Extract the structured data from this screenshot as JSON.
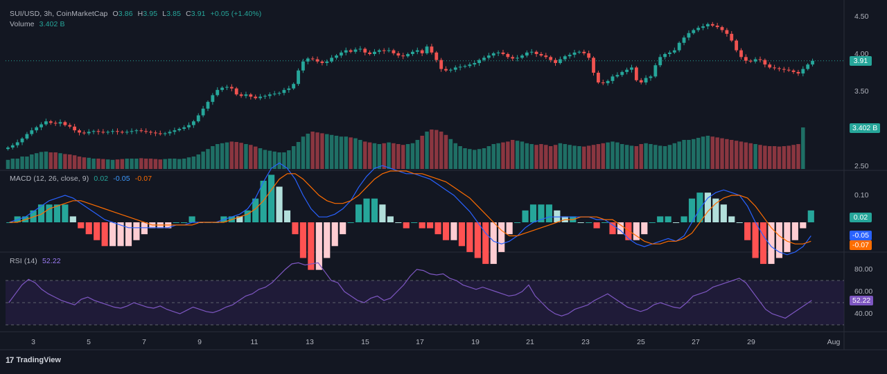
{
  "colors": {
    "background": "#131722",
    "up": "#26a69a",
    "down": "#ef5350",
    "volume_up": "#1f6f65",
    "volume_down": "#8a3640",
    "macd_line": "#2962ff",
    "signal_line": "#ff6d00",
    "rsi_line": "#7e57c2",
    "rsi_band": "#2a1f4a"
  },
  "legend": {
    "symbol": "SUI/USD, 3h, CoinMarketCap",
    "o_label": "O",
    "o_value": "3.86",
    "h_label": "H",
    "h_value": "3.95",
    "l_label": "L",
    "l_value": "3.85",
    "c_label": "C",
    "c_value": "3.91",
    "change": "+0.05 (+1.40%)",
    "volume_label": "Volume",
    "volume_value": "3.402 B",
    "macd_label": "MACD (12, 26, close, 9)",
    "macd_hist": "0.02",
    "macd_line": "-0.05",
    "macd_signal": "-0.07",
    "rsi_label": "RSI (14)",
    "rsi_value": "52.22"
  },
  "badges": {
    "price": "3.91",
    "volume": "3.402 B",
    "macd_hist": "0.02",
    "macd_line": "-0.05",
    "macd_signal": "-0.07",
    "rsi": "52.22"
  },
  "y_axis": {
    "price_ticks": [
      "4.50",
      "4.00",
      "3.50",
      "2.50"
    ],
    "macd_ticks": [
      "0.10",
      "0.00"
    ],
    "rsi_ticks": [
      "80.00",
      "60.00",
      "40.00"
    ]
  },
  "x_axis": {
    "ticks": [
      "3",
      "5",
      "7",
      "9",
      "11",
      "13",
      "15",
      "17",
      "19",
      "21",
      "23",
      "25",
      "27",
      "29",
      "Aug"
    ]
  },
  "branding": {
    "name": "TradingView"
  },
  "chart_data": [
    {
      "type": "candlestick",
      "title": "SUI/USD, 3h, CoinMarketCap",
      "price_range": [
        2.5,
        4.5
      ],
      "close_series": [
        2.75,
        2.78,
        2.82,
        2.87,
        2.93,
        2.98,
        3.02,
        3.06,
        3.1,
        3.08,
        3.07,
        3.09,
        3.05,
        3.03,
        2.98,
        2.95,
        2.94,
        2.96,
        2.97,
        2.96,
        2.95,
        2.96,
        2.97,
        2.96,
        2.95,
        2.96,
        2.97,
        2.98,
        2.97,
        2.96,
        2.95,
        2.94,
        2.93,
        2.94,
        2.96,
        2.98,
        3.0,
        3.02,
        3.05,
        3.1,
        3.18,
        3.27,
        3.36,
        3.45,
        3.52,
        3.55,
        3.56,
        3.54,
        3.46,
        3.44,
        3.46,
        3.43,
        3.41,
        3.43,
        3.44,
        3.46,
        3.47,
        3.48,
        3.52,
        3.54,
        3.6,
        3.78,
        3.9,
        3.94,
        3.93,
        3.9,
        3.88,
        3.9,
        3.95,
        3.98,
        4.02,
        4.05,
        4.03,
        4.06,
        4.07,
        4.02,
        4.0,
        4.03,
        4.05,
        4.04,
        4.05,
        4.01,
        3.98,
        3.97,
        4.0,
        4.03,
        4.05,
        4.01,
        4.1,
        4.02,
        3.92,
        3.8,
        3.78,
        3.79,
        3.82,
        3.83,
        3.84,
        3.86,
        3.88,
        3.92,
        3.95,
        3.98,
        4.01,
        4.02,
        4.0,
        3.96,
        3.94,
        3.95,
        3.98,
        4.02,
        4.03,
        4.0,
        3.98,
        3.96,
        3.92,
        3.88,
        3.93,
        3.97,
        3.99,
        4.02,
        4.03,
        4.01,
        3.95,
        3.75,
        3.62,
        3.61,
        3.64,
        3.7,
        3.72,
        3.76,
        3.79,
        3.82,
        3.65,
        3.62,
        3.68,
        3.7,
        3.85,
        3.96,
        4.0,
        4.02,
        4.05,
        4.15,
        4.22,
        4.28,
        4.32,
        4.35,
        4.37,
        4.4,
        4.38,
        4.36,
        4.32,
        4.27,
        4.18,
        4.05,
        3.96,
        3.91,
        3.9,
        3.93,
        3.92,
        3.86,
        3.82,
        3.81,
        3.8,
        3.79,
        3.78,
        3.76,
        3.74,
        3.8,
        3.86,
        3.91
      ],
      "volume_relative": [
        0.22,
        0.25,
        0.25,
        0.3,
        0.3,
        0.35,
        0.38,
        0.41,
        0.42,
        0.4,
        0.4,
        0.38,
        0.36,
        0.35,
        0.33,
        0.3,
        0.28,
        0.27,
        0.25,
        0.25,
        0.24,
        0.23,
        0.22,
        0.23,
        0.24,
        0.25,
        0.25,
        0.25,
        0.26,
        0.25,
        0.25,
        0.24,
        0.23,
        0.24,
        0.25,
        0.25,
        0.24,
        0.25,
        0.28,
        0.3,
        0.35,
        0.42,
        0.48,
        0.55,
        0.6,
        0.62,
        0.64,
        0.66,
        0.65,
        0.63,
        0.6,
        0.58,
        0.54,
        0.5,
        0.46,
        0.44,
        0.42,
        0.4,
        0.4,
        0.45,
        0.55,
        0.65,
        0.78,
        0.85,
        0.9,
        0.88,
        0.86,
        0.84,
        0.82,
        0.8,
        0.78,
        0.78,
        0.76,
        0.74,
        0.7,
        0.66,
        0.64,
        0.62,
        0.6,
        0.62,
        0.64,
        0.62,
        0.6,
        0.58,
        0.6,
        0.62,
        0.7,
        0.8,
        0.9,
        0.95,
        0.94,
        0.9,
        0.82,
        0.72,
        0.62,
        0.55,
        0.5,
        0.48,
        0.46,
        0.48,
        0.5,
        0.55,
        0.6,
        0.62,
        0.64,
        0.66,
        0.7,
        0.68,
        0.66,
        0.62,
        0.6,
        0.58,
        0.6,
        0.58,
        0.55,
        0.58,
        0.62,
        0.6,
        0.58,
        0.56,
        0.55,
        0.54,
        0.56,
        0.58,
        0.6,
        0.62,
        0.64,
        0.66,
        0.64,
        0.6,
        0.58,
        0.56,
        0.55,
        0.6,
        0.62,
        0.6,
        0.58,
        0.56,
        0.55,
        0.58,
        0.62,
        0.66,
        0.7,
        0.7,
        0.72,
        0.75,
        0.78,
        0.8,
        0.78,
        0.76,
        0.74,
        0.72,
        0.7,
        0.68,
        0.66,
        0.64,
        0.62,
        0.6,
        0.58,
        0.56,
        0.55,
        0.55,
        0.54,
        0.55,
        0.56,
        0.58,
        0.6,
        1.0
      ]
    },
    {
      "type": "line",
      "title": "MACD (12, 26, close, 9)",
      "series": [
        {
          "name": "MACD",
          "values": [
            0.0,
            0.01,
            0.02,
            0.04,
            0.06,
            0.08,
            0.09,
            0.1,
            0.09,
            0.07,
            0.05,
            0.03,
            0.01,
            0.0,
            -0.01,
            -0.02,
            -0.02,
            -0.02,
            -0.02,
            -0.02,
            -0.02,
            -0.01,
            -0.01,
            0.0,
            0.0,
            0.0,
            0.0,
            0.01,
            0.02,
            0.03,
            0.05,
            0.09,
            0.15,
            0.2,
            0.22,
            0.2,
            0.16,
            0.1,
            0.05,
            0.02,
            0.02,
            0.03,
            0.05,
            0.08,
            0.13,
            0.17,
            0.2,
            0.21,
            0.2,
            0.19,
            0.18,
            0.18,
            0.17,
            0.16,
            0.14,
            0.12,
            0.1,
            0.07,
            0.04,
            0.0,
            -0.04,
            -0.07,
            -0.08,
            -0.07,
            -0.05,
            -0.02,
            0.0,
            0.01,
            0.02,
            0.02,
            0.02,
            0.02,
            0.02,
            0.02,
            0.01,
            0.01,
            -0.01,
            -0.03,
            -0.06,
            -0.08,
            -0.09,
            -0.08,
            -0.07,
            -0.06,
            -0.07,
            -0.05,
            0.0,
            0.05,
            0.09,
            0.11,
            0.12,
            0.11,
            0.1,
            0.06,
            0.0,
            -0.05,
            -0.09,
            -0.11,
            -0.12,
            -0.11,
            -0.09,
            -0.05
          ]
        },
        {
          "name": "Signal",
          "values": [
            0.0,
            0.0,
            0.01,
            0.02,
            0.03,
            0.05,
            0.06,
            0.07,
            0.08,
            0.08,
            0.07,
            0.06,
            0.05,
            0.04,
            0.03,
            0.02,
            0.01,
            0.0,
            -0.01,
            -0.01,
            -0.01,
            -0.01,
            -0.01,
            -0.01,
            0.0,
            0.0,
            0.0,
            0.0,
            0.01,
            0.02,
            0.03,
            0.05,
            0.08,
            0.12,
            0.16,
            0.18,
            0.18,
            0.16,
            0.13,
            0.1,
            0.08,
            0.07,
            0.07,
            0.08,
            0.1,
            0.13,
            0.16,
            0.18,
            0.19,
            0.19,
            0.19,
            0.18,
            0.18,
            0.17,
            0.16,
            0.15,
            0.13,
            0.11,
            0.09,
            0.06,
            0.03,
            0.0,
            -0.03,
            -0.05,
            -0.05,
            -0.04,
            -0.03,
            -0.02,
            -0.01,
            0.0,
            0.01,
            0.01,
            0.02,
            0.02,
            0.02,
            0.01,
            0.01,
            -0.01,
            -0.03,
            -0.05,
            -0.07,
            -0.08,
            -0.08,
            -0.07,
            -0.07,
            -0.06,
            -0.04,
            0.0,
            0.04,
            0.07,
            0.09,
            0.1,
            0.1,
            0.09,
            0.06,
            0.02,
            -0.02,
            -0.05,
            -0.07,
            -0.08,
            -0.08,
            -0.07
          ]
        }
      ]
    },
    {
      "type": "line",
      "title": "RSI (14)",
      "ylim": [
        30,
        90
      ],
      "bands": [
        30,
        50,
        70
      ],
      "series": [
        {
          "name": "RSI",
          "values": [
            50,
            58,
            66,
            71,
            68,
            62,
            58,
            55,
            52,
            50,
            48,
            53,
            55,
            52,
            50,
            48,
            46,
            45,
            47,
            50,
            48,
            46,
            45,
            47,
            44,
            42,
            40,
            43,
            46,
            44,
            42,
            41,
            43,
            46,
            48,
            52,
            56,
            58,
            62,
            64,
            68,
            74,
            80,
            85,
            86,
            84,
            85,
            86,
            78,
            70,
            68,
            60,
            56,
            52,
            50,
            54,
            56,
            52,
            54,
            60,
            66,
            74,
            80,
            79,
            76,
            75,
            76,
            72,
            70,
            66,
            64,
            62,
            64,
            62,
            60,
            58,
            56,
            57,
            60,
            66,
            56,
            50,
            44,
            40,
            38,
            40,
            44,
            46,
            48,
            52,
            55,
            58,
            54,
            50,
            46,
            44,
            42,
            44,
            48,
            50,
            48,
            46,
            45,
            50,
            56,
            58,
            60,
            64,
            66,
            68,
            70,
            72,
            68,
            60,
            52,
            44,
            40,
            38,
            36,
            40,
            44,
            48,
            52
          ]
        }
      ]
    }
  ]
}
